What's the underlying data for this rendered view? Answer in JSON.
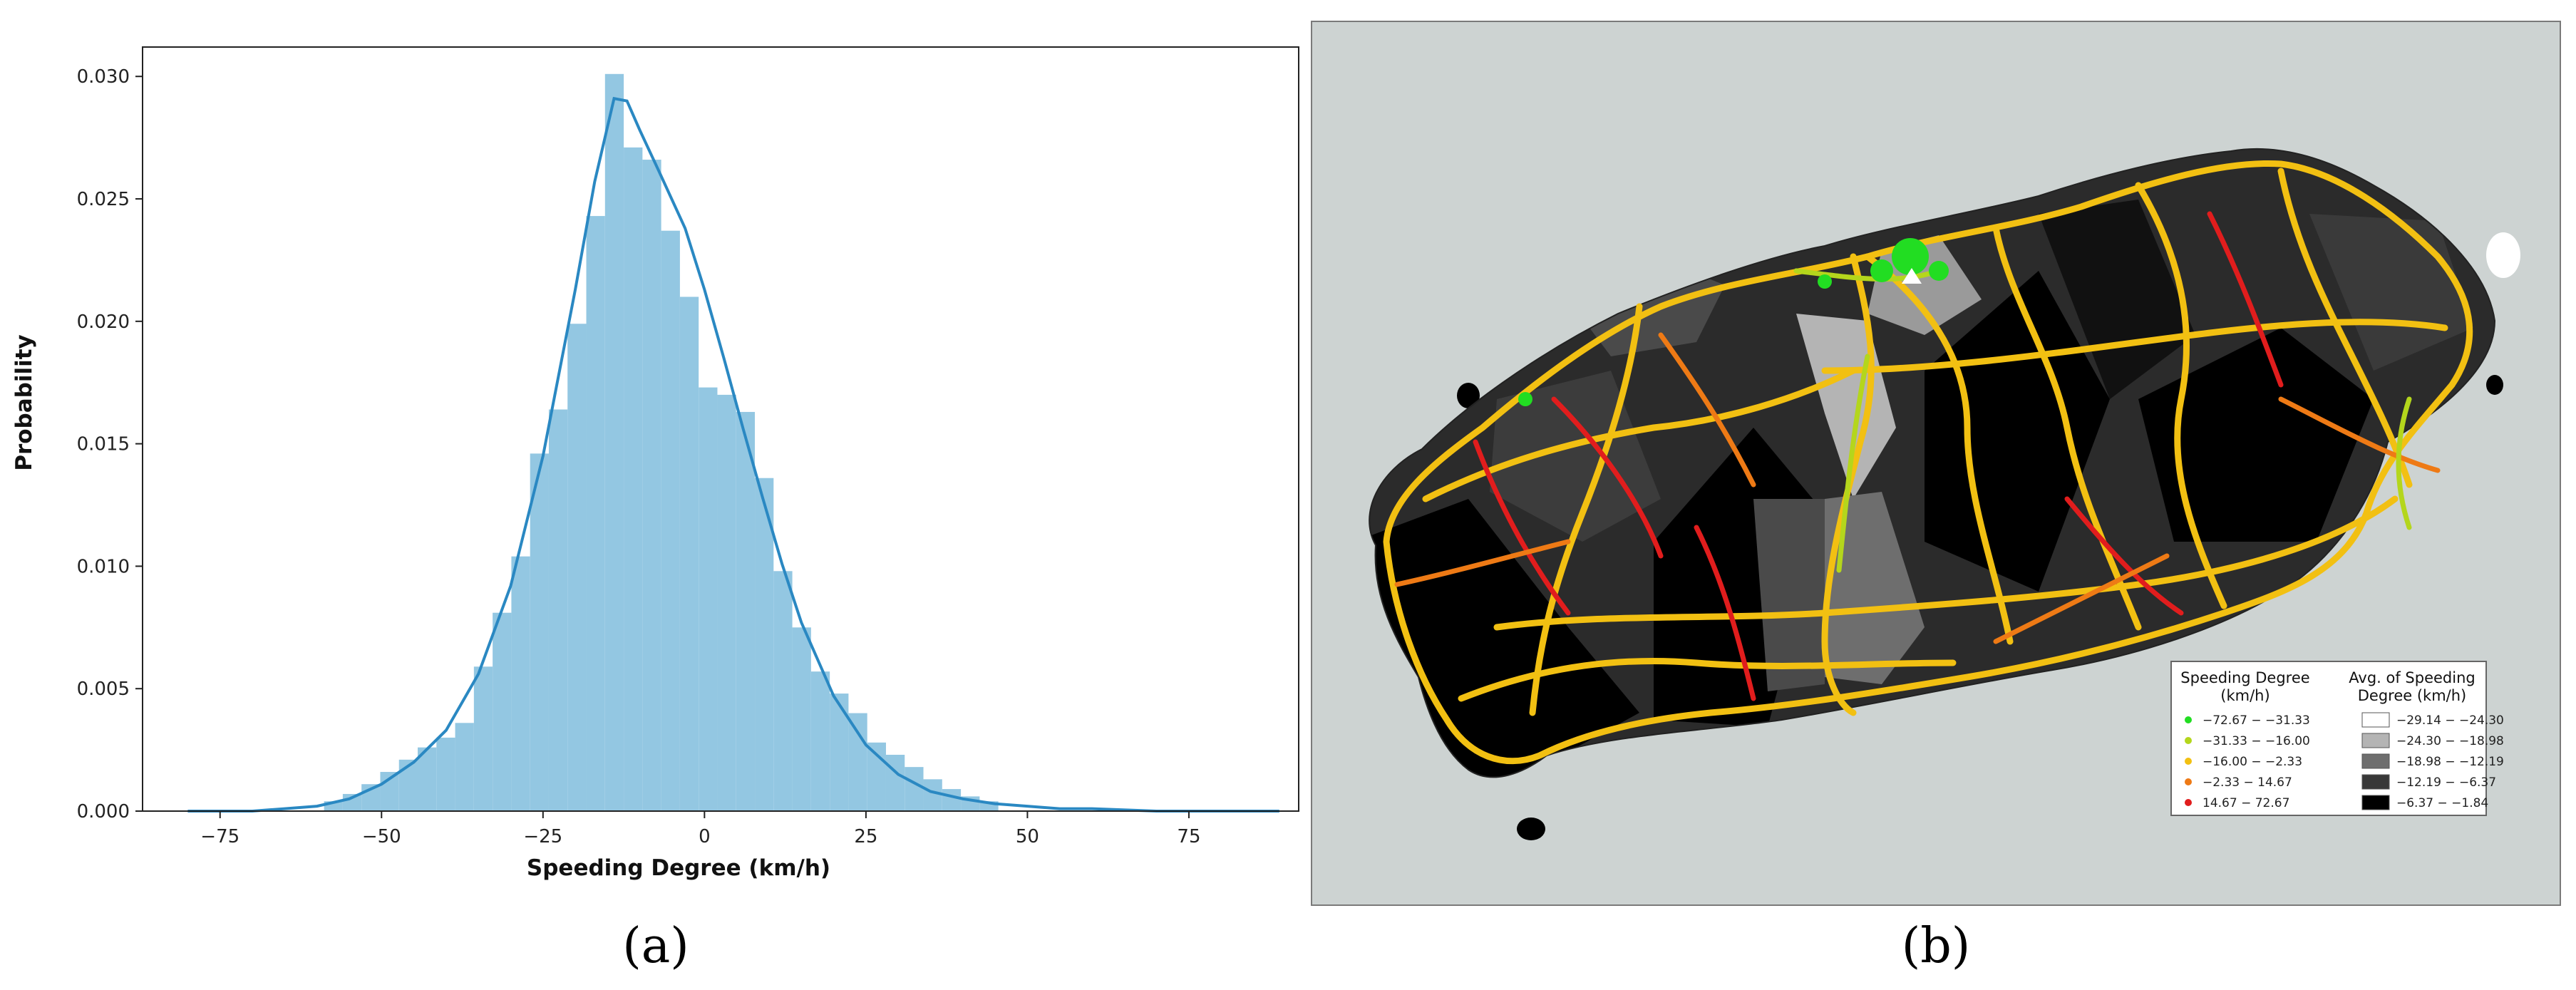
{
  "panel_a": {
    "caption": "(a)",
    "chart_data": {
      "type": "histogram",
      "xlabel": "Speeding Degree (km/h)",
      "ylabel": "Probability",
      "xlim": [
        -87,
        92
      ],
      "ylim": [
        0,
        0.0312
      ],
      "xticks": [
        -75,
        -50,
        -25,
        0,
        25,
        50,
        75
      ],
      "xtick_labels": [
        "−75",
        "−50",
        "−25",
        "0",
        "25",
        "50",
        "75"
      ],
      "yticks": [
        0.0,
        0.005,
        0.01,
        0.015,
        0.02,
        0.025,
        0.03
      ],
      "ytick_labels": [
        "0.000",
        "0.005",
        "0.010",
        "0.015",
        "0.020",
        "0.025",
        "0.030"
      ],
      "grid": false,
      "bin_width": 2.9,
      "bins": [
        {
          "x0": -58.9,
          "value": 0.0004
        },
        {
          "x0": -56.0,
          "value": 0.0007
        },
        {
          "x0": -53.1,
          "value": 0.0011
        },
        {
          "x0": -50.2,
          "value": 0.0016
        },
        {
          "x0": -47.3,
          "value": 0.0021
        },
        {
          "x0": -44.4,
          "value": 0.0026
        },
        {
          "x0": -41.5,
          "value": 0.003
        },
        {
          "x0": -38.6,
          "value": 0.0036
        },
        {
          "x0": -35.7,
          "value": 0.0059
        },
        {
          "x0": -32.8,
          "value": 0.0081
        },
        {
          "x0": -29.9,
          "value": 0.0104
        },
        {
          "x0": -27.0,
          "value": 0.0146
        },
        {
          "x0": -24.1,
          "value": 0.0164
        },
        {
          "x0": -21.2,
          "value": 0.0199
        },
        {
          "x0": -18.3,
          "value": 0.0243
        },
        {
          "x0": -15.4,
          "value": 0.0301
        },
        {
          "x0": -12.5,
          "value": 0.0271
        },
        {
          "x0": -9.6,
          "value": 0.0266
        },
        {
          "x0": -6.7,
          "value": 0.0237
        },
        {
          "x0": -3.8,
          "value": 0.021
        },
        {
          "x0": -0.9,
          "value": 0.0173
        },
        {
          "x0": 2.0,
          "value": 0.017
        },
        {
          "x0": 4.9,
          "value": 0.0163
        },
        {
          "x0": 7.8,
          "value": 0.0136
        },
        {
          "x0": 10.7,
          "value": 0.0098
        },
        {
          "x0": 13.6,
          "value": 0.0075
        },
        {
          "x0": 16.5,
          "value": 0.0057
        },
        {
          "x0": 19.4,
          "value": 0.0048
        },
        {
          "x0": 22.3,
          "value": 0.004
        },
        {
          "x0": 25.2,
          "value": 0.0028
        },
        {
          "x0": 28.1,
          "value": 0.0023
        },
        {
          "x0": 31.0,
          "value": 0.0018
        },
        {
          "x0": 33.9,
          "value": 0.0013
        },
        {
          "x0": 36.8,
          "value": 0.0009
        },
        {
          "x0": 39.7,
          "value": 0.0006
        },
        {
          "x0": 42.6,
          "value": 0.0004
        }
      ],
      "kde": {
        "x": [
          -80,
          -70,
          -65,
          -60,
          -55,
          -50,
          -45,
          -40,
          -35,
          -30,
          -25,
          -20,
          -17,
          -14,
          -12,
          -10,
          -7,
          -3,
          0,
          3,
          6,
          9,
          12,
          15,
          20,
          25,
          30,
          35,
          40,
          45,
          50,
          55,
          60,
          70,
          80,
          89
        ],
        "y": [
          0.0,
          0.0,
          0.0001,
          0.0002,
          0.0005,
          0.0011,
          0.002,
          0.0033,
          0.0056,
          0.0092,
          0.0145,
          0.0213,
          0.0257,
          0.0291,
          0.029,
          0.0278,
          0.0261,
          0.0238,
          0.0213,
          0.0185,
          0.0156,
          0.0128,
          0.0101,
          0.0077,
          0.0047,
          0.0027,
          0.0015,
          0.0008,
          0.0005,
          0.0003,
          0.0002,
          0.0001,
          0.0001,
          0.0,
          0.0,
          0.0
        ]
      },
      "colors": {
        "bar": "#93c7e2",
        "kde": "#2a88c2"
      }
    }
  },
  "panel_b": {
    "caption": "(b)",
    "map": {
      "colors": {
        "sea": "#cdd3d2",
        "border": "#7a7a7a"
      },
      "legend_points": {
        "title": "Speeding Degree\n(km/h)",
        "items": [
          {
            "label": "−72.67 − −31.33",
            "color": "#22dd22"
          },
          {
            "label": "−31.33 − −16.00",
            "color": "#b4d61c"
          },
          {
            "label": "−16.00 − −2.33",
            "color": "#f2c012"
          },
          {
            "label": "−2.33 − 14.67",
            "color": "#ee7a15"
          },
          {
            "label": "14.67 − 72.67",
            "color": "#e11d1d"
          }
        ]
      },
      "legend_regions": {
        "title": "Avg. of Speeding\nDegree (km/h)",
        "items": [
          {
            "label": "−29.14 − −24.30",
            "color": "#ffffff"
          },
          {
            "label": "−24.30 − −18.98",
            "color": "#b4b4b4"
          },
          {
            "label": "−18.98 − −12.19",
            "color": "#6e6e6e"
          },
          {
            "label": "−12.19 − −6.37",
            "color": "#383838"
          },
          {
            "label": "−6.37 − −1.84",
            "color": "#000000"
          }
        ]
      }
    }
  }
}
